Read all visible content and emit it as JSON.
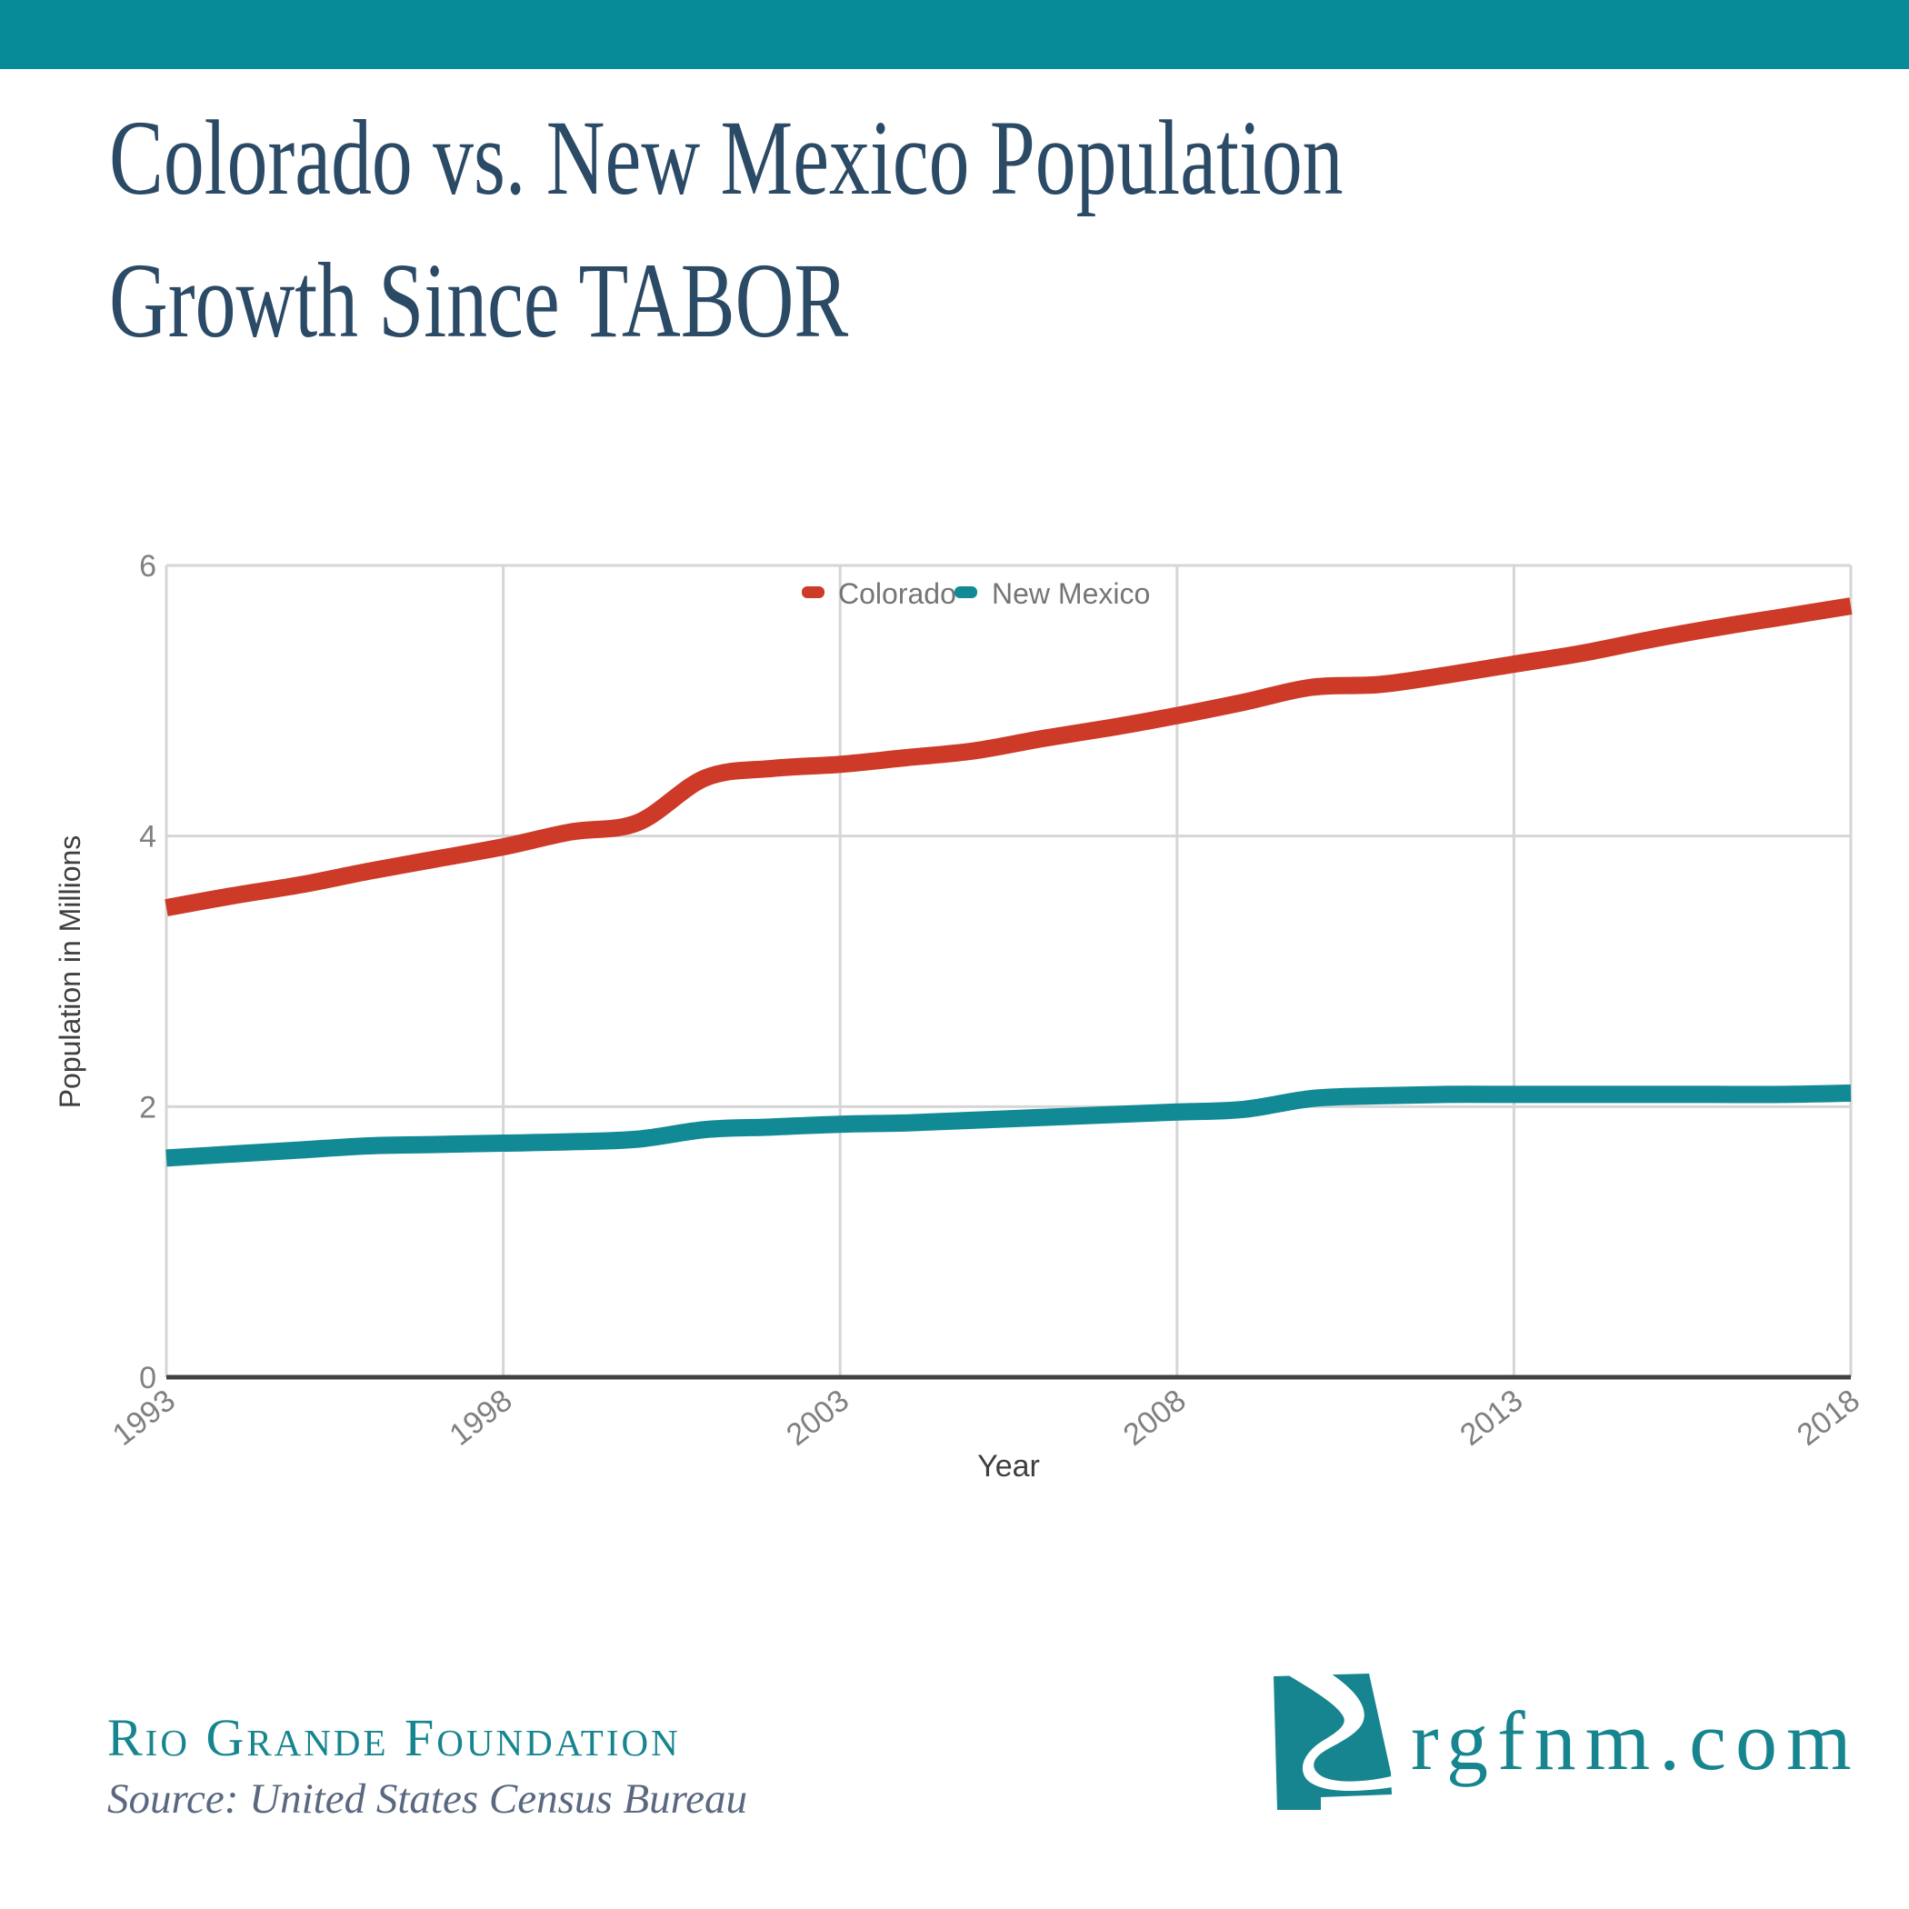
{
  "header": {
    "bar_color": "#068C98"
  },
  "title": {
    "line1": "Colorado vs. New Mexico Population",
    "line2": "Growth Since TABOR",
    "color": "#2B4A66"
  },
  "chart_data": {
    "type": "line",
    "title": "",
    "xlabel": "Year",
    "ylabel": "Population in Millions",
    "xlim": [
      1993,
      2018
    ],
    "ylim": [
      0,
      6
    ],
    "x_ticks": [
      1993,
      1998,
      2003,
      2008,
      2013,
      2018
    ],
    "y_ticks": [
      0,
      2,
      4,
      6
    ],
    "grid": true,
    "legend_position": "top-center",
    "x": [
      1993,
      1994,
      1995,
      1996,
      1997,
      1998,
      1999,
      2000,
      2001,
      2002,
      2003,
      2004,
      2005,
      2006,
      2007,
      2008,
      2009,
      2010,
      2011,
      2012,
      2013,
      2014,
      2015,
      2016,
      2017,
      2018
    ],
    "series": [
      {
        "name": "Colorado",
        "color": "#CD3A27",
        "values": [
          3.47,
          3.56,
          3.64,
          3.74,
          3.83,
          3.92,
          4.03,
          4.1,
          4.43,
          4.5,
          4.53,
          4.58,
          4.63,
          4.72,
          4.8,
          4.89,
          4.99,
          5.1,
          5.12,
          5.19,
          5.27,
          5.35,
          5.45,
          5.54,
          5.62,
          5.7
        ]
      },
      {
        "name": "New Mexico",
        "color": "#118A96",
        "values": [
          1.62,
          1.65,
          1.68,
          1.71,
          1.72,
          1.73,
          1.74,
          1.76,
          1.83,
          1.85,
          1.87,
          1.88,
          1.9,
          1.92,
          1.94,
          1.96,
          1.98,
          2.06,
          2.08,
          2.09,
          2.09,
          2.09,
          2.09,
          2.09,
          2.09,
          2.1
        ]
      }
    ],
    "tick_label_color": "#808080",
    "axis_title_color": "#3F3F3F",
    "legend_text_color": "#757575",
    "gridline_color": "#D6D6D6",
    "baseline_color": "#424242"
  },
  "footer": {
    "foundation": "Rio Grande Foundation",
    "source": "Source: United States Census Bureau",
    "site": "rgfnm.com",
    "brand_color": "#17858F"
  }
}
